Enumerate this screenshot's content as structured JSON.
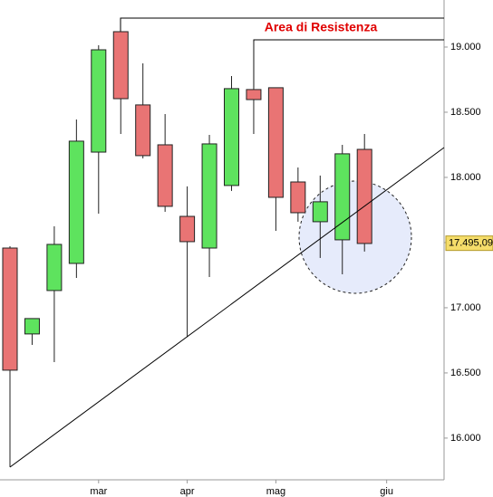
{
  "chart_data": {
    "type": "candlestick",
    "annotation": "Area di Resistenza",
    "categories": [
      null,
      null,
      null,
      null,
      "mar",
      null,
      null,
      null,
      "apr",
      null,
      null,
      null,
      "mag",
      null,
      null,
      null,
      null,
      "giu"
    ],
    "open": [
      17.458,
      16.799,
      17.132,
      17.34,
      18.194,
      19.118,
      18.556,
      18.25,
      17.701,
      17.458,
      17.938,
      18.674,
      18.688,
      17.965,
      17.66,
      17.521,
      18.215,
      null
    ],
    "high": [
      17.472,
      16.917,
      17.625,
      18.444,
      19.014,
      19.118,
      18.875,
      18.486,
      17.931,
      18.326,
      18.778,
      19.042,
      18.688,
      18.076,
      18.014,
      18.25,
      18.333,
      null
    ],
    "low": [
      15.778,
      16.715,
      16.583,
      17.229,
      17.722,
      18.333,
      18.146,
      17.736,
      16.778,
      17.236,
      17.896,
      18.333,
      17.59,
      17.66,
      17.382,
      17.257,
      17.431,
      null
    ],
    "close": [
      16.521,
      16.917,
      17.486,
      18.278,
      18.979,
      18.604,
      18.167,
      17.778,
      17.507,
      18.257,
      18.681,
      18.597,
      17.847,
      17.729,
      17.813,
      18.181,
      17.493,
      null
    ],
    "up_color": "#5ee35e",
    "down_color": "#e97474",
    "ylim": [
      15.68,
      19.361
    ],
    "yticks": [
      {
        "value": 16,
        "label": "16.000"
      },
      {
        "value": 16.5,
        "label": "16.500"
      },
      {
        "value": 17,
        "label": "17.000"
      },
      {
        "value": 17.5,
        "label": "17.500"
      },
      {
        "value": 18,
        "label": "18.000"
      },
      {
        "value": 18.5,
        "label": "18.500"
      },
      {
        "value": 19,
        "label": "19.000"
      }
    ],
    "last_price": {
      "value": 17.49509,
      "label": "17.495,09"
    }
  }
}
